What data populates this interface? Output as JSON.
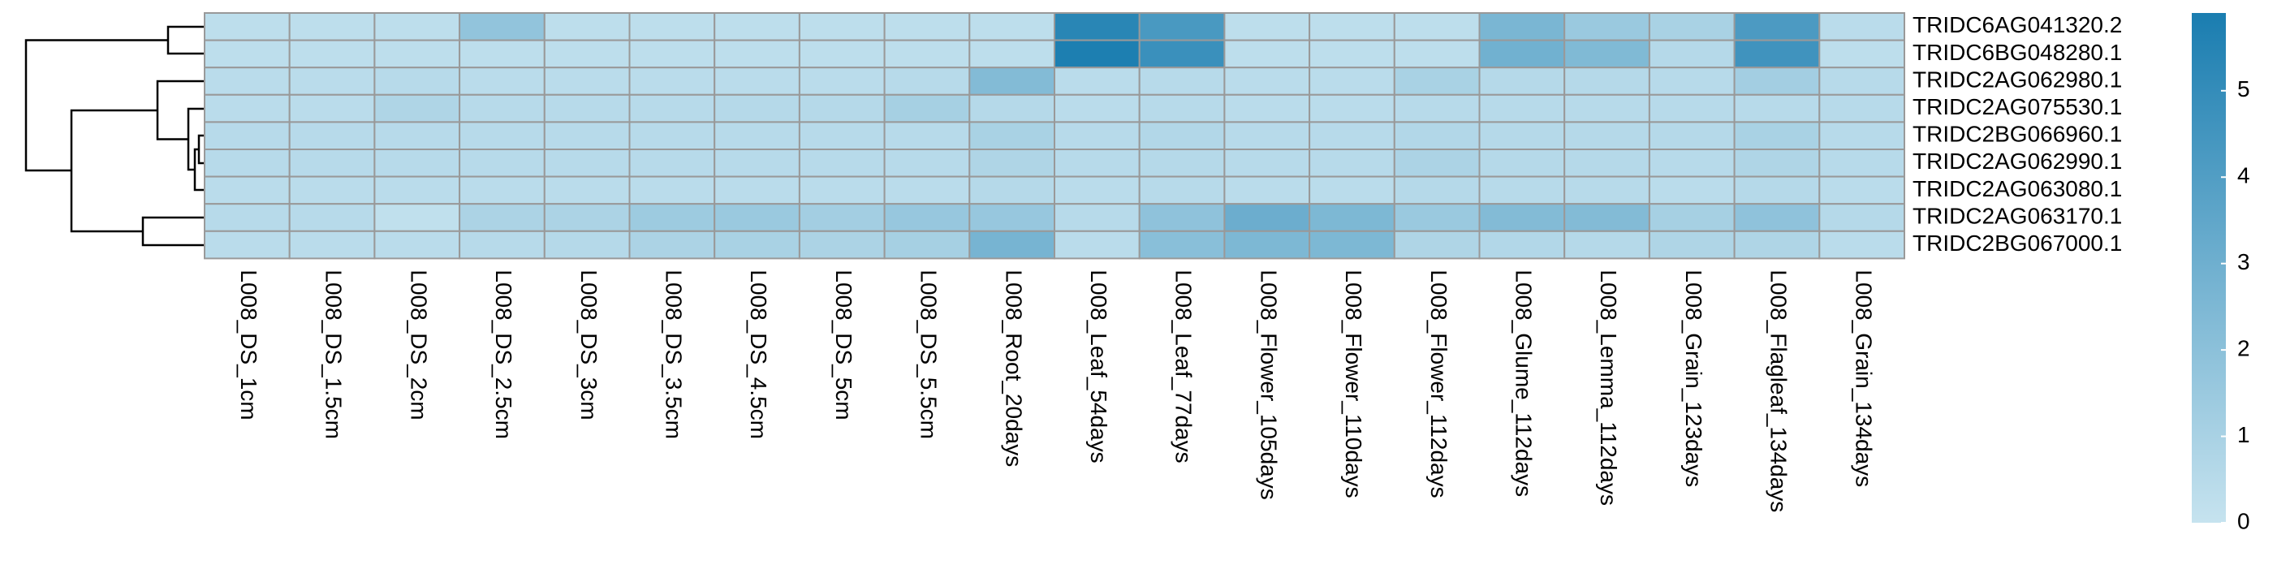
{
  "chart_data": {
    "type": "heatmap",
    "rows": [
      "TRIDC6AG041320.2",
      "TRIDC6BG048280.1",
      "TRIDC2AG062980.1",
      "TRIDC2AG075530.1",
      "TRIDC2BG066960.1",
      "TRIDC2AG062990.1",
      "TRIDC2AG063080.1",
      "TRIDC2AG063170.1",
      "TRIDC2BG067000.1"
    ],
    "columns": [
      "L008_DS_1cm",
      "L008_DS_1.5cm",
      "L008_DS_2cm",
      "L008_DS_2.5cm",
      "L008_DS_3cm",
      "L008_DS_3.5cm",
      "L008_DS_4.5cm",
      "L008_DS_5cm",
      "L008_DS_5.5cm",
      "L008_Root_20days",
      "L008_Leaf_54days",
      "L008_Leaf_77days",
      "L008_Flower_105days",
      "L008_Flower_110days",
      "L008_Flower_112days",
      "L008_Glume_112days",
      "L008_Lemma_112days",
      "L008_Grain_123days",
      "L008_Flagleaf_134days",
      "L008_Grain_134days"
    ],
    "values": [
      [
        0.3,
        0.3,
        0.3,
        1.8,
        0.3,
        0.3,
        0.3,
        0.3,
        0.3,
        0.3,
        5.4,
        4.3,
        0.3,
        0.3,
        0.3,
        2.6,
        1.5,
        1.0,
        4.2,
        0.4
      ],
      [
        0.3,
        0.3,
        0.3,
        0.3,
        0.3,
        0.3,
        0.3,
        0.3,
        0.3,
        0.3,
        5.8,
        4.8,
        0.3,
        0.3,
        0.3,
        2.9,
        2.4,
        0.6,
        4.6,
        0.3
      ],
      [
        0.4,
        0.4,
        0.5,
        0.4,
        0.4,
        0.4,
        0.4,
        0.4,
        0.5,
        2.3,
        0.4,
        0.5,
        0.4,
        0.4,
        1.0,
        0.6,
        0.6,
        0.5,
        1.2,
        0.5
      ],
      [
        0.4,
        0.4,
        0.8,
        0.5,
        0.5,
        0.5,
        0.6,
        0.6,
        1.1,
        0.6,
        0.4,
        0.5,
        0.4,
        0.4,
        0.5,
        0.5,
        0.5,
        0.5,
        0.5,
        0.5
      ],
      [
        0.5,
        0.5,
        0.5,
        0.5,
        0.5,
        0.5,
        0.5,
        0.5,
        0.5,
        1.0,
        0.5,
        0.7,
        0.5,
        0.5,
        0.7,
        0.6,
        0.6,
        0.6,
        1.0,
        0.5
      ],
      [
        0.5,
        0.5,
        0.5,
        0.5,
        0.5,
        0.5,
        0.5,
        0.5,
        0.5,
        0.8,
        0.5,
        0.6,
        0.5,
        0.5,
        0.9,
        0.6,
        0.6,
        0.5,
        0.8,
        0.5
      ],
      [
        0.4,
        0.4,
        0.4,
        0.4,
        0.4,
        0.4,
        0.4,
        0.4,
        0.4,
        0.6,
        0.4,
        0.5,
        0.4,
        0.4,
        0.6,
        0.5,
        0.5,
        0.4,
        0.6,
        0.4
      ],
      [
        0.5,
        0.5,
        0.2,
        0.9,
        0.9,
        1.4,
        1.5,
        1.2,
        1.6,
        1.6,
        0.5,
        1.9,
        3.1,
        2.5,
        1.5,
        2.3,
        2.3,
        1.1,
        1.9,
        0.6
      ],
      [
        0.4,
        0.4,
        0.4,
        0.5,
        0.6,
        0.9,
        1.0,
        0.9,
        1.1,
        2.7,
        0.4,
        2.1,
        2.5,
        2.5,
        0.8,
        0.7,
        0.6,
        0.8,
        0.8,
        0.4
      ]
    ],
    "colors": [
      "#c6e3ef",
      "#1a7db0"
    ],
    "clim": [
      0,
      5.9
    ],
    "cticks": [
      0,
      1,
      2,
      3,
      4,
      5
    ]
  }
}
